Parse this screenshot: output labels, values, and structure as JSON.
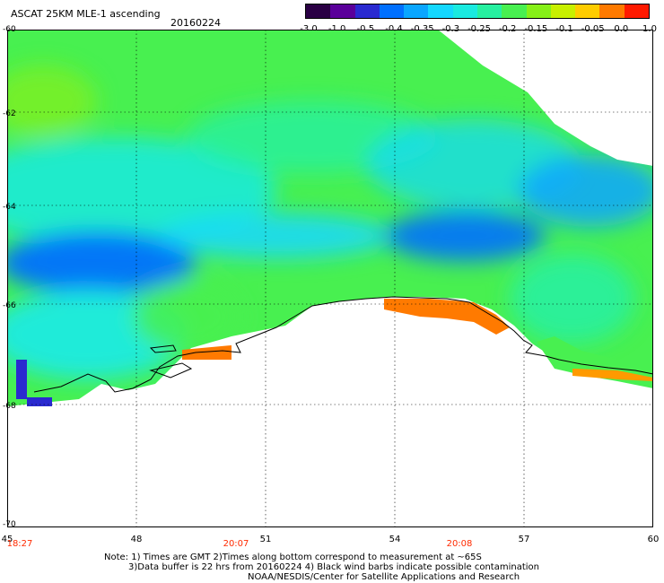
{
  "title": "ASCAT 25KM MLE-1 ascending",
  "date": "20160224",
  "colorbar": {
    "labels": [
      "-3.0",
      "-1.0",
      "-0.5",
      "-0.4",
      "-0.35",
      "-0.3",
      "-0.25",
      "-0.2",
      "-0.15",
      "-0.1",
      "-0.05",
      "0.0",
      "1.0"
    ],
    "colors": [
      "#2a0044",
      "#5a009a",
      "#2a2ad0",
      "#0070ff",
      "#0aa6ff",
      "#14d8ff",
      "#1aeae0",
      "#27f0a0",
      "#48f050",
      "#86f018",
      "#c8f000",
      "#ffcc00",
      "#ff7a00",
      "#ff1a00"
    ]
  },
  "map": {
    "lat_range": [
      -70,
      -60
    ],
    "lon_range": [
      45,
      60
    ],
    "lat_labels": [
      "-60",
      "-62",
      "-64",
      "-66",
      "-68",
      "-70"
    ],
    "lon_labels": [
      "45",
      "48",
      "51",
      "54",
      "57",
      "60"
    ],
    "time_labels": [
      "18:27",
      "20:07",
      "20:08"
    ],
    "data_regions": {
      "ocean_band_lat": [
        -60,
        -66.5
      ],
      "low_mle_patch": "blue",
      "coastal_high_mle": "orange"
    }
  },
  "notes": {
    "line1": "Note: 1) Times are GMT 2)Times along bottom correspond to measurement at ~65S",
    "line2": "3)Data buffer is 22 hrs from 20160224 4) Black wind barbs indicate possible contamination",
    "line3": "NOAA/NESDIS/Center for Satellite Applications and Research"
  }
}
